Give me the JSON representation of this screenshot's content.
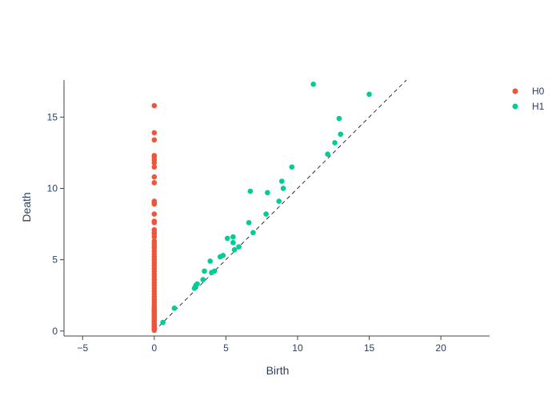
{
  "chart_data": {
    "type": "scatter",
    "title": "",
    "xlabel": "Birth",
    "ylabel": "Death",
    "xlim": [
      -6.3,
      23.4
    ],
    "ylim": [
      -0.35,
      17.6
    ],
    "xticks": [
      -5,
      0,
      5,
      10,
      15,
      20
    ],
    "yticks": [
      0,
      5,
      10,
      15
    ],
    "grid": false,
    "legend_position": "top-right",
    "diagonal": {
      "from": [
        0,
        0
      ],
      "to": [
        17.6,
        17.6
      ],
      "style": "dashed"
    },
    "series": [
      {
        "name": "H0",
        "color": "#EF553B",
        "x": [
          0,
          0,
          0,
          0,
          0,
          0,
          0,
          0,
          0,
          0,
          0,
          0,
          0,
          0,
          0,
          0,
          0,
          0,
          0,
          0,
          0,
          0,
          0,
          0,
          0,
          0,
          0,
          0,
          0,
          0,
          0,
          0,
          0,
          0,
          0,
          0,
          0,
          0,
          0,
          0,
          0,
          0,
          0,
          0,
          0,
          0,
          0,
          0,
          0,
          0,
          0,
          0,
          0,
          0,
          0,
          0,
          0,
          0,
          0,
          0,
          0,
          0,
          0,
          0
        ],
        "y": [
          15.8,
          13.9,
          13.4,
          12.3,
          12.2,
          12.0,
          11.8,
          11.5,
          10.8,
          10.4,
          9.1,
          9.0,
          8.9,
          8.2,
          7.7,
          7.6,
          7.1,
          6.9,
          6.8,
          6.6,
          6.3,
          6.1,
          5.9,
          5.8,
          5.6,
          5.4,
          5.2,
          5.0,
          4.8,
          4.6,
          4.4,
          4.2,
          4.0,
          3.8,
          3.6,
          3.4,
          3.2,
          3.0,
          2.8,
          2.6,
          2.4,
          2.2,
          2.0,
          1.8,
          1.7,
          1.6,
          1.5,
          1.4,
          1.3,
          1.2,
          1.1,
          1.0,
          0.9,
          0.8,
          0.7,
          0.6,
          0.5,
          0.4,
          0.35,
          0.3,
          0.2,
          0.15,
          0.1,
          0.05
        ]
      },
      {
        "name": "H1",
        "color": "#00CC96",
        "x": [
          0.6,
          1.4,
          2.8,
          2.9,
          3.0,
          3.4,
          3.5,
          3.9,
          4.0,
          4.2,
          4.6,
          4.8,
          5.1,
          5.5,
          5.5,
          5.6,
          5.9,
          6.6,
          6.7,
          6.9,
          7.8,
          7.9,
          8.7,
          8.9,
          9.0,
          9.6,
          11.1,
          12.1,
          12.6,
          12.9,
          13.0,
          15.0
        ],
        "y": [
          0.6,
          1.6,
          3.0,
          3.2,
          3.3,
          3.6,
          4.2,
          4.9,
          4.1,
          4.2,
          5.2,
          5.3,
          6.5,
          6.6,
          6.2,
          5.7,
          5.9,
          7.6,
          9.8,
          6.9,
          8.2,
          9.7,
          9.1,
          10.5,
          10.0,
          11.5,
          17.3,
          12.4,
          13.2,
          14.9,
          13.8,
          16.6
        ]
      }
    ]
  }
}
